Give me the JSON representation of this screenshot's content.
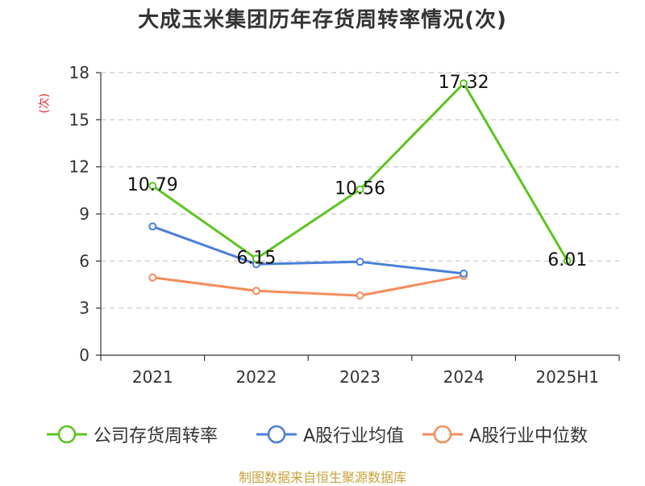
{
  "title": "大成玉米集团历年存货周转率情况(次)",
  "source": "制图数据来自恒生聚源数据库",
  "chart_data": {
    "type": "line",
    "title": "大成玉米集团历年存货周转率情况(次)",
    "ylabel": "(次)",
    "xlabel": "",
    "categories": [
      "2021",
      "2022",
      "2023",
      "2024",
      "2025H1"
    ],
    "ylim": [
      0,
      18
    ],
    "yticks": [
      0,
      3,
      6,
      9,
      12,
      15,
      18
    ],
    "grid": true,
    "legend_position": "bottom",
    "series": [
      {
        "name": "公司存货周转率",
        "color": "#5cc41f",
        "values": [
          10.79,
          6.15,
          10.56,
          17.32,
          6.01
        ],
        "labels": [
          "10.79",
          "6.15",
          "10.56",
          "17.32",
          "6.01"
        ]
      },
      {
        "name": "A股行业均值",
        "color": "#4a7fdb",
        "values": [
          8.2,
          5.8,
          5.95,
          5.2,
          null
        ]
      },
      {
        "name": "A股行业中位数",
        "color": "#f58c5a",
        "values": [
          4.95,
          4.1,
          3.8,
          5.05,
          null
        ]
      }
    ]
  }
}
